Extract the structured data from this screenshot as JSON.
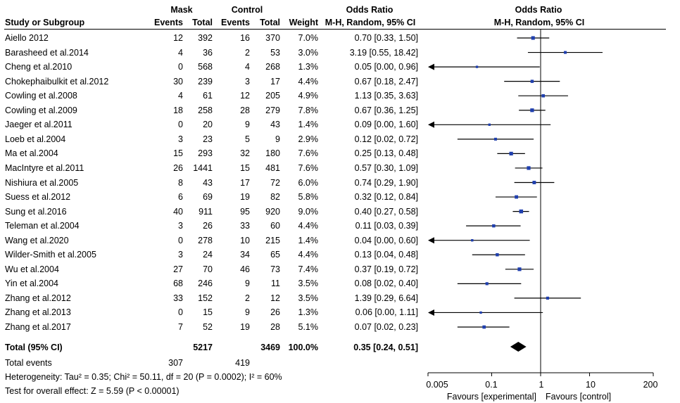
{
  "header": {
    "mask_group": "Mask",
    "control_group": "Control",
    "odds_ratio_col": "Odds Ratio",
    "odds_ratio_plot": "Odds Ratio",
    "study_col": "Study or Subgroup",
    "events1": "Events",
    "total1": "Total",
    "events2": "Events",
    "total2": "Total",
    "weight": "Weight",
    "method_col": "M-H, Random, 95% CI",
    "method_plot": "M-H, Random, 95% CI"
  },
  "studies": [
    {
      "name": "Aiello 2012",
      "me": "12",
      "mt": "392",
      "ce": "16",
      "ct": "370",
      "w": "7.0%",
      "ci": "0.70 [0.33, 1.50]"
    },
    {
      "name": "Barasheed et al.2014",
      "me": "4",
      "mt": "36",
      "ce": "2",
      "ct": "53",
      "w": "3.0%",
      "ci": "3.19 [0.55, 18.42]"
    },
    {
      "name": "Cheng et al.2010",
      "me": "0",
      "mt": "568",
      "ce": "4",
      "ct": "268",
      "w": "1.3%",
      "ci": "0.05 [0.00, 0.96]"
    },
    {
      "name": "Chokephaibulkit et al.2012",
      "me": "30",
      "mt": "239",
      "ce": "3",
      "ct": "17",
      "w": "4.4%",
      "ci": "0.67 [0.18, 2.47]"
    },
    {
      "name": "Cowling et al.2008",
      "me": "4",
      "mt": "61",
      "ce": "12",
      "ct": "205",
      "w": "4.9%",
      "ci": "1.13 [0.35, 3.63]"
    },
    {
      "name": "Cowling et al.2009",
      "me": "18",
      "mt": "258",
      "ce": "28",
      "ct": "279",
      "w": "7.8%",
      "ci": "0.67 [0.36, 1.25]"
    },
    {
      "name": "Jaeger et al.2011",
      "me": "0",
      "mt": "20",
      "ce": "9",
      "ct": "43",
      "w": "1.4%",
      "ci": "0.09 [0.00, 1.60]"
    },
    {
      "name": "Loeb et al.2004",
      "me": "3",
      "mt": "23",
      "ce": "5",
      "ct": "9",
      "w": "2.9%",
      "ci": "0.12 [0.02, 0.72]"
    },
    {
      "name": "Ma et al.2004",
      "me": "15",
      "mt": "293",
      "ce": "32",
      "ct": "180",
      "w": "7.6%",
      "ci": "0.25 [0.13, 0.48]"
    },
    {
      "name": "MacIntyre et al.2011",
      "me": "26",
      "mt": "1441",
      "ce": "15",
      "ct": "481",
      "w": "7.6%",
      "ci": "0.57 [0.30, 1.09]"
    },
    {
      "name": "Nishiura et al.2005",
      "me": "8",
      "mt": "43",
      "ce": "17",
      "ct": "72",
      "w": "6.0%",
      "ci": "0.74 [0.29, 1.90]"
    },
    {
      "name": "Suess et al.2012",
      "me": "6",
      "mt": "69",
      "ce": "19",
      "ct": "82",
      "w": "5.8%",
      "ci": "0.32 [0.12, 0.84]"
    },
    {
      "name": "Sung et al.2016",
      "me": "40",
      "mt": "911",
      "ce": "95",
      "ct": "920",
      "w": "9.0%",
      "ci": "0.40 [0.27, 0.58]"
    },
    {
      "name": "Teleman et al.2004",
      "me": "3",
      "mt": "26",
      "ce": "33",
      "ct": "60",
      "w": "4.4%",
      "ci": "0.11 [0.03, 0.39]"
    },
    {
      "name": "Wang et al.2020",
      "me": "0",
      "mt": "278",
      "ce": "10",
      "ct": "215",
      "w": "1.4%",
      "ci": "0.04 [0.00, 0.60]"
    },
    {
      "name": "Wilder-Smith et al.2005",
      "me": "3",
      "mt": "24",
      "ce": "34",
      "ct": "65",
      "w": "4.4%",
      "ci": "0.13 [0.04, 0.48]"
    },
    {
      "name": "Wu et al.2004",
      "me": "27",
      "mt": "70",
      "ce": "46",
      "ct": "73",
      "w": "7.4%",
      "ci": "0.37 [0.19, 0.72]"
    },
    {
      "name": "Yin et al.2004",
      "me": "68",
      "mt": "246",
      "ce": "9",
      "ct": "11",
      "w": "3.5%",
      "ci": "0.08 [0.02, 0.40]"
    },
    {
      "name": "Zhang et al.2012",
      "me": "33",
      "mt": "152",
      "ce": "2",
      "ct": "12",
      "w": "3.5%",
      "ci": "1.39 [0.29, 6.64]"
    },
    {
      "name": "Zhang et al.2013",
      "me": "0",
      "mt": "15",
      "ce": "9",
      "ct": "26",
      "w": "1.3%",
      "ci": "0.06 [0.00, 1.11]"
    },
    {
      "name": "Zhang et al.2017",
      "me": "7",
      "mt": "52",
      "ce": "19",
      "ct": "28",
      "w": "5.1%",
      "ci": "0.07 [0.02, 0.23]"
    }
  ],
  "total": {
    "label": "Total (95% CI)",
    "mask_total": "5217",
    "control_total": "3469",
    "weight": "100.0%",
    "ci": "0.35 [0.24, 0.51]"
  },
  "total_events": {
    "label": "Total events",
    "mask": "307",
    "control": "419"
  },
  "heterogeneity": "Heterogeneity: Tau² = 0.35; Chi² = 50.11, df = 20 (P = 0.0002); I² = 60%",
  "overall_effect": "Test for overall effect: Z = 5.59 (P < 0.00001)",
  "axis": {
    "ticks": [
      "0.005",
      "0.1",
      "1",
      "10",
      "200"
    ],
    "favours_left": "Favours [experimental]",
    "favours_right": "Favours [control]"
  },
  "chart_data": {
    "type": "forest",
    "scale": "log",
    "xlim": [
      0.005,
      200
    ],
    "null_line": 1,
    "marker_color": "#1f3fae",
    "studies": [
      {
        "name": "Aiello 2012",
        "or": 0.7,
        "lo": 0.33,
        "hi": 1.5,
        "weight": 7.0
      },
      {
        "name": "Barasheed et al.2014",
        "or": 3.19,
        "lo": 0.55,
        "hi": 18.42,
        "weight": 3.0
      },
      {
        "name": "Cheng et al.2010",
        "or": 0.05,
        "lo": 0.0,
        "hi": 0.96,
        "weight": 1.3
      },
      {
        "name": "Chokephaibulkit et al.2012",
        "or": 0.67,
        "lo": 0.18,
        "hi": 2.47,
        "weight": 4.4
      },
      {
        "name": "Cowling et al.2008",
        "or": 1.13,
        "lo": 0.35,
        "hi": 3.63,
        "weight": 4.9
      },
      {
        "name": "Cowling et al.2009",
        "or": 0.67,
        "lo": 0.36,
        "hi": 1.25,
        "weight": 7.8
      },
      {
        "name": "Jaeger et al.2011",
        "or": 0.09,
        "lo": 0.0,
        "hi": 1.6,
        "weight": 1.4
      },
      {
        "name": "Loeb et al.2004",
        "or": 0.12,
        "lo": 0.02,
        "hi": 0.72,
        "weight": 2.9
      },
      {
        "name": "Ma et al.2004",
        "or": 0.25,
        "lo": 0.13,
        "hi": 0.48,
        "weight": 7.6
      },
      {
        "name": "MacIntyre et al.2011",
        "or": 0.57,
        "lo": 0.3,
        "hi": 1.09,
        "weight": 7.6
      },
      {
        "name": "Nishiura et al.2005",
        "or": 0.74,
        "lo": 0.29,
        "hi": 1.9,
        "weight": 6.0
      },
      {
        "name": "Suess et al.2012",
        "or": 0.32,
        "lo": 0.12,
        "hi": 0.84,
        "weight": 5.8
      },
      {
        "name": "Sung et al.2016",
        "or": 0.4,
        "lo": 0.27,
        "hi": 0.58,
        "weight": 9.0
      },
      {
        "name": "Teleman et al.2004",
        "or": 0.11,
        "lo": 0.03,
        "hi": 0.39,
        "weight": 4.4
      },
      {
        "name": "Wang et al.2020",
        "or": 0.04,
        "lo": 0.0,
        "hi": 0.6,
        "weight": 1.4
      },
      {
        "name": "Wilder-Smith et al.2005",
        "or": 0.13,
        "lo": 0.04,
        "hi": 0.48,
        "weight": 4.4
      },
      {
        "name": "Wu et al.2004",
        "or": 0.37,
        "lo": 0.19,
        "hi": 0.72,
        "weight": 7.4
      },
      {
        "name": "Yin et al.2004",
        "or": 0.08,
        "lo": 0.02,
        "hi": 0.4,
        "weight": 3.5
      },
      {
        "name": "Zhang et al.2012",
        "or": 1.39,
        "lo": 0.29,
        "hi": 6.64,
        "weight": 3.5
      },
      {
        "name": "Zhang et al.2013",
        "or": 0.06,
        "lo": 0.0,
        "hi": 1.11,
        "weight": 1.3
      },
      {
        "name": "Zhang et al.2017",
        "or": 0.07,
        "lo": 0.02,
        "hi": 0.23,
        "weight": 5.1
      }
    ],
    "pooled": {
      "or": 0.35,
      "lo": 0.24,
      "hi": 0.51
    }
  }
}
